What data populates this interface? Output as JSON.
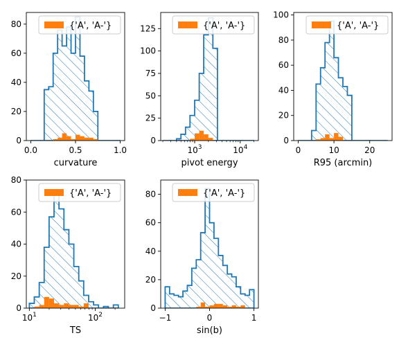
{
  "colors": {
    "primary": "#1f77b4",
    "secondary": "#ff7f0e",
    "legend_edge": "#cccccc"
  },
  "chart_data": [
    {
      "type": "histogram",
      "xlabel": "curvature",
      "xscale": "linear",
      "xlim": [
        -0.05,
        1.05
      ],
      "ylim": [
        0,
        88
      ],
      "xticks": [
        {
          "v": 0.0,
          "label": "0.0"
        },
        {
          "v": 0.5,
          "label": "0.5"
        },
        {
          "v": 1.0,
          "label": "1.0"
        }
      ],
      "yticks": [
        {
          "v": 0,
          "label": "0"
        },
        {
          "v": 20,
          "label": "20"
        },
        {
          "v": 40,
          "label": "40"
        },
        {
          "v": 60,
          "label": "60"
        },
        {
          "v": 80,
          "label": "80"
        }
      ],
      "legend": {
        "label": "{'A', 'A-'}",
        "position": "upper right"
      },
      "hist": {
        "edges": [
          0.0,
          0.05,
          0.1,
          0.15,
          0.2,
          0.25,
          0.3,
          0.35,
          0.4,
          0.45,
          0.5,
          0.55,
          0.6,
          0.65,
          0.7,
          0.75,
          0.8,
          0.85,
          0.9,
          0.95,
          1.0
        ],
        "counts": [
          0,
          0,
          0,
          35,
          37,
          60,
          76,
          65,
          78,
          60,
          85,
          58,
          41,
          34,
          20,
          0,
          0,
          0,
          0,
          0
        ]
      },
      "subset": {
        "edges": [
          0.25,
          0.3,
          0.35,
          0.4,
          0.45,
          0.5,
          0.55,
          0.6,
          0.65,
          0.7,
          0.75
        ],
        "counts": [
          1,
          2,
          5,
          3,
          1,
          4,
          3,
          2,
          2,
          1
        ]
      }
    },
    {
      "type": "histogram",
      "xlabel": "pivot energy",
      "xscale": "log",
      "xlim": [
        180,
        25000
      ],
      "ylim": [
        0,
        143
      ],
      "xticks": [
        {
          "v": 1000,
          "label": "10",
          "sup": "3"
        },
        {
          "v": 10000,
          "label": "10",
          "sup": "4"
        }
      ],
      "yticks": [
        {
          "v": 0,
          "label": "0"
        },
        {
          "v": 25,
          "label": "25"
        },
        {
          "v": 50,
          "label": "50"
        },
        {
          "v": 75,
          "label": "75"
        },
        {
          "v": 100,
          "label": "100"
        },
        {
          "v": 125,
          "label": "125"
        }
      ],
      "legend": {
        "label": "{'A', 'A-'}",
        "position": "upper right"
      },
      "hist": {
        "edges": [
          200,
          250,
          315,
          400,
          500,
          630,
          790,
          1000,
          1260,
          1580,
          2000,
          2510,
          3160,
          3980,
          5010,
          6310,
          7940,
          10000,
          12600,
          15800,
          20000
        ],
        "counts": [
          0,
          0,
          0,
          2,
          7,
          15,
          28,
          45,
          75,
          118,
          137,
          103,
          0,
          0,
          0,
          0,
          0,
          0,
          0,
          0
        ]
      },
      "subset": {
        "edges": [
          790,
          1000,
          1260,
          1580,
          2000,
          2510
        ],
        "counts": [
          2,
          8,
          11,
          7,
          3
        ]
      }
    },
    {
      "type": "histogram",
      "xlabel": "R95 (arcmin)",
      "xscale": "linear",
      "xlim": [
        -1.25,
        26.25
      ],
      "ylim": [
        0,
        102
      ],
      "xticks": [
        {
          "v": 0,
          "label": "0"
        },
        {
          "v": 10,
          "label": "10"
        },
        {
          "v": 20,
          "label": "20"
        }
      ],
      "yticks": [
        {
          "v": 0,
          "label": "0"
        },
        {
          "v": 20,
          "label": "20"
        },
        {
          "v": 40,
          "label": "40"
        },
        {
          "v": 60,
          "label": "60"
        },
        {
          "v": 80,
          "label": "80"
        },
        {
          "v": 100,
          "label": "100"
        }
      ],
      "legend": {
        "label": "{'A', 'A-'}",
        "position": "upper right"
      },
      "hist": {
        "edges": [
          0,
          1.25,
          2.5,
          3.75,
          5,
          6.25,
          7.5,
          8.75,
          10,
          11.25,
          12.5,
          13.75,
          15,
          16.25,
          17.5,
          18.75,
          20,
          21.25,
          22.5,
          23.75,
          25
        ],
        "counts": [
          0,
          0,
          0,
          8,
          45,
          58,
          78,
          95,
          66,
          50,
          43,
          36,
          0,
          0,
          0,
          0,
          0,
          0,
          0,
          0
        ]
      },
      "subset": {
        "edges": [
          5,
          6.25,
          7.5,
          8.75,
          10,
          11.25,
          12.5
        ],
        "counts": [
          1,
          2,
          5,
          2,
          6,
          3
        ]
      }
    },
    {
      "type": "histogram",
      "xlabel": "TS",
      "xscale": "log",
      "xlim": [
        9,
        280
      ],
      "ylim": [
        0,
        80
      ],
      "xticks": [
        {
          "v": 10,
          "label": "10",
          "sup": "1"
        },
        {
          "v": 100,
          "label": "10",
          "sup": "2"
        }
      ],
      "yticks": [
        {
          "v": 0,
          "label": "0"
        },
        {
          "v": 20,
          "label": "20"
        },
        {
          "v": 40,
          "label": "40"
        },
        {
          "v": 60,
          "label": "60"
        },
        {
          "v": 80,
          "label": "80"
        }
      ],
      "legend": {
        "label": "{'A', 'A-'}",
        "position": "upper right"
      },
      "hist": {
        "edges": [
          10,
          11.88,
          14.13,
          16.79,
          19.95,
          23.71,
          28.18,
          33.5,
          39.81,
          47.32,
          56.23,
          66.83,
          79.43,
          94.41,
          112.2,
          133.4,
          158.5,
          188.4,
          223.9
        ],
        "counts": [
          3,
          7,
          16,
          38,
          57,
          74,
          62,
          49,
          40,
          26,
          17,
          8,
          4,
          2,
          0,
          1,
          0,
          2
        ]
      },
      "subset": {
        "edges": [
          11.88,
          14.13,
          16.79,
          19.95,
          23.71,
          28.18,
          33.5,
          39.81,
          47.32,
          56.23,
          66.83,
          79.43
        ],
        "counts": [
          1,
          2,
          7,
          6,
          3,
          2,
          3,
          2,
          2,
          1,
          3
        ]
      }
    },
    {
      "type": "histogram",
      "xlabel": "sin(b)",
      "xscale": "linear",
      "xlim": [
        -1.1,
        1.1
      ],
      "ylim": [
        0,
        90
      ],
      "xticks": [
        {
          "v": -1,
          "label": "−1"
        },
        {
          "v": 0,
          "label": "0"
        },
        {
          "v": 1,
          "label": "1"
        }
      ],
      "yticks": [
        {
          "v": 0,
          "label": "0"
        },
        {
          "v": 20,
          "label": "20"
        },
        {
          "v": 40,
          "label": "40"
        },
        {
          "v": 60,
          "label": "60"
        },
        {
          "v": 80,
          "label": "80"
        }
      ],
      "legend": {
        "label": "{'A', 'A-'}",
        "position": "upper right"
      },
      "hist": {
        "edges": [
          -1.0,
          -0.9,
          -0.8,
          -0.7,
          -0.6,
          -0.5,
          -0.4,
          -0.3,
          -0.2,
          -0.1,
          0.0,
          0.1,
          0.2,
          0.3,
          0.4,
          0.5,
          0.6,
          0.7,
          0.8,
          0.9,
          1.0
        ],
        "counts": [
          15,
          10,
          9,
          8,
          12,
          16,
          28,
          34,
          53,
          84,
          60,
          49,
          37,
          30,
          24,
          22,
          15,
          10,
          9,
          13
        ]
      },
      "subset": {
        "edges": [
          -0.3,
          -0.2,
          -0.1,
          0.0,
          0.1,
          0.2,
          0.3,
          0.4,
          0.5,
          0.6,
          0.7,
          0.8
        ],
        "counts": [
          1,
          4,
          1,
          2,
          3,
          3,
          2,
          1,
          2,
          1,
          2
        ]
      }
    }
  ]
}
